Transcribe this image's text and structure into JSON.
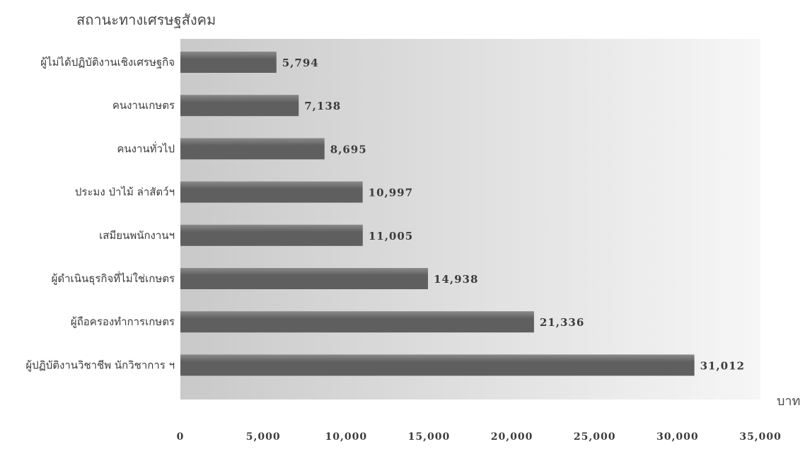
{
  "chart_data": {
    "type": "bar",
    "orientation": "horizontal",
    "title": "สถานะทางเศรษฐสังคม",
    "xlabel": "บาท",
    "ylabel": "",
    "categories": [
      "ผู้ไม่ได้ปฏิบัติงานเชิงเศรษฐกิจ",
      "คนงานเกษตร",
      "คนงานทั่วไป",
      "ประมง ป่าไม้ ล่าสัตว์ฯ",
      "เสมียนพนักงานฯ",
      "ผู้ดำเนินธุรกิจที่ไม่ใช่เกษตร",
      "ผู้ถือครองทำการเกษตร",
      "ผู้ปฏิบัติงานวิชาชีพ นักวิชาการ ฯ"
    ],
    "values": [
      5794,
      7138,
      8695,
      10997,
      11005,
      14938,
      21336,
      31012
    ],
    "value_labels": [
      "5,794",
      "7,138",
      "8,695",
      "10,997",
      "11,005",
      "14,938",
      "21,336",
      "31,012"
    ],
    "xlim": [
      0,
      35000
    ],
    "xticks": [
      0,
      5000,
      10000,
      15000,
      20000,
      25000,
      30000,
      35000
    ],
    "xtick_labels": [
      "0",
      "5,000",
      "10,000",
      "15,000",
      "20,000",
      "25,000",
      "30,000",
      "35,000"
    ],
    "grid": false,
    "legend": "none",
    "colors": {
      "bar": "#5f5f5f",
      "bar_highlight": "#8a8a8a",
      "plot_background_left": "#c9c9c9",
      "plot_background_right": "#f6f6f6"
    }
  }
}
